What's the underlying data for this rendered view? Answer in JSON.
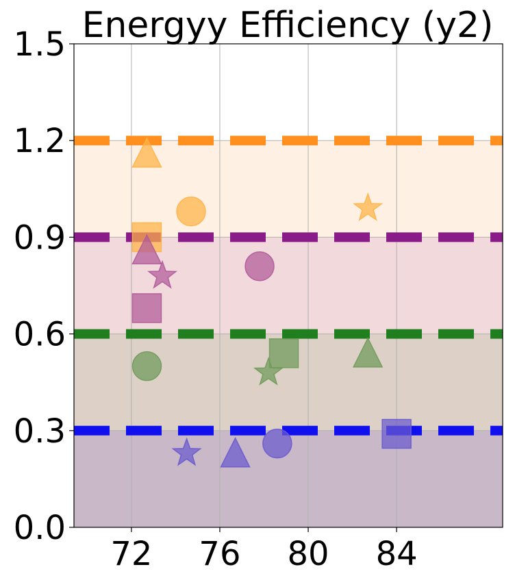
{
  "chart_data": {
    "type": "scatter",
    "title": "Energyy Efficiency (y2)",
    "xlabel": "",
    "ylabel": "",
    "xlim": [
      69.4,
      88.8
    ],
    "ylim": [
      0.0,
      1.5
    ],
    "xticks": [
      72,
      76,
      80,
      84
    ],
    "yticks": [
      0.0,
      0.3,
      0.6,
      0.9,
      1.2,
      1.5
    ],
    "xtick_labels": [
      "72",
      "76",
      "80",
      "84"
    ],
    "ytick_labels": [
      "0.0",
      "0.3",
      "0.6",
      "0.9",
      "1.2",
      "1.5"
    ],
    "grid": true,
    "legend": "none",
    "bands": [
      {
        "from": 0.0,
        "to": 0.3,
        "color": "#c9b8c8"
      },
      {
        "from": 0.3,
        "to": 0.6,
        "color": "#ddd0c7"
      },
      {
        "from": 0.6,
        "to": 0.9,
        "color": "#f2dadc"
      },
      {
        "from": 0.9,
        "to": 1.2,
        "color": "#fef0e2"
      }
    ],
    "threshold_lines": [
      {
        "y": 0.3,
        "color": "#1010ee"
      },
      {
        "y": 0.6,
        "color": "#1f7f1f"
      },
      {
        "y": 0.9,
        "color": "#8a1c8a"
      },
      {
        "y": 1.2,
        "color": "#ff9020"
      }
    ],
    "series": [
      {
        "color": "#ffb347",
        "points": [
          {
            "x": 72.7,
            "y": 1.16,
            "marker": "triangle"
          },
          {
            "x": 74.7,
            "y": 0.98,
            "marker": "circle"
          },
          {
            "x": 72.7,
            "y": 0.9,
            "marker": "square"
          },
          {
            "x": 82.7,
            "y": 0.99,
            "marker": "star"
          }
        ]
      },
      {
        "color": "#b05a9a",
        "points": [
          {
            "x": 72.7,
            "y": 0.86,
            "marker": "triangle"
          },
          {
            "x": 73.4,
            "y": 0.78,
            "marker": "star"
          },
          {
            "x": 72.7,
            "y": 0.68,
            "marker": "square"
          },
          {
            "x": 77.8,
            "y": 0.81,
            "marker": "circle"
          }
        ]
      },
      {
        "color": "#6f9a5a",
        "points": [
          {
            "x": 72.7,
            "y": 0.5,
            "marker": "circle"
          },
          {
            "x": 78.2,
            "y": 0.48,
            "marker": "star"
          },
          {
            "x": 78.9,
            "y": 0.54,
            "marker": "square"
          },
          {
            "x": 82.7,
            "y": 0.54,
            "marker": "triangle"
          }
        ]
      },
      {
        "color": "#6a5acd",
        "points": [
          {
            "x": 74.5,
            "y": 0.23,
            "marker": "star"
          },
          {
            "x": 76.7,
            "y": 0.23,
            "marker": "triangle"
          },
          {
            "x": 78.6,
            "y": 0.26,
            "marker": "circle"
          },
          {
            "x": 84.0,
            "y": 0.29,
            "marker": "square"
          }
        ]
      }
    ]
  }
}
